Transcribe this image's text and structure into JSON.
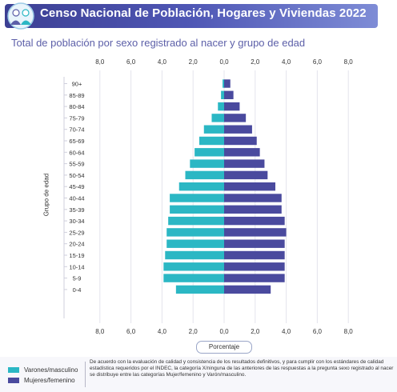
{
  "header": {
    "title": "Censo Nacional de Población, Hogares y Viviendas 2022"
  },
  "subtitle": "Total de población por sexo registrado al nacer y grupo de edad",
  "colors": {
    "male": "#2bb7c4",
    "female": "#4a4a9e",
    "grid": "#e4e4ec",
    "header": "#4f57b5",
    "title": "#5c5fa8"
  },
  "icons": {
    "logo": "census-logo-icon"
  },
  "chart_data": {
    "type": "bar",
    "orientation": "horizontal",
    "subtype": "population-pyramid",
    "categories": [
      "90+",
      "85-89",
      "80-84",
      "75-79",
      "70-74",
      "65-69",
      "60-64",
      "55-59",
      "50-54",
      "45-49",
      "40-44",
      "35-39",
      "30-34",
      "25-29",
      "20-24",
      "15-19",
      "10-14",
      "5-9",
      "0-4"
    ],
    "series": [
      {
        "name": "Varones/masculino",
        "values": [
          0.1,
          0.2,
          0.4,
          0.8,
          1.3,
          1.6,
          1.9,
          2.2,
          2.5,
          2.9,
          3.5,
          3.5,
          3.6,
          3.7,
          3.7,
          3.8,
          3.9,
          3.9,
          3.1
        ]
      },
      {
        "name": "Mujeres/femenino",
        "values": [
          0.4,
          0.6,
          1.0,
          1.4,
          1.8,
          2.1,
          2.3,
          2.6,
          2.8,
          3.3,
          3.7,
          3.7,
          3.9,
          4.0,
          3.9,
          3.9,
          3.9,
          3.9,
          3.0
        ]
      }
    ],
    "xlim": [
      -8,
      8
    ],
    "xticks": [
      "8,0",
      "6,0",
      "4,0",
      "2,0",
      "0,0",
      "2,0",
      "4,0",
      "6,0",
      "8,0"
    ],
    "xlabel": "Porcentaje",
    "ylabel": "Grupo de edad",
    "grid": true,
    "legend": "bottom-left"
  },
  "legend": {
    "male": "Varones/masculino",
    "female": "Mujeres/femenino"
  },
  "note": "De acuerdo con la evaluación de calidad y consistencia de los resultados definitivos, y para cumplir con los estándares de calidad estadística requeridos por el INDEC, la categoría X/ninguna de las anteriores de las respuestas a la pregunta sexo registrado al nacer se distribuye entre las categorías Mujer/femenino y Varón/masculino."
}
